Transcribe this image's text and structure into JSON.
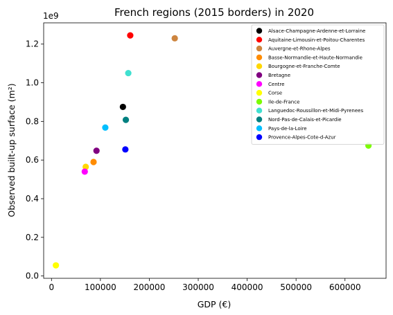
{
  "chart_data": {
    "type": "scatter",
    "title": "French regions (2015 borders) in 2020",
    "xlabel": "GDP (€)",
    "ylabel": "Observed built-up surface (m²)",
    "y_offset_label": "1e9",
    "xlim": [
      -16000,
      684000
    ],
    "ylim": [
      -0.012,
      1.31
    ],
    "xticks": [
      0,
      100000,
      200000,
      300000,
      400000,
      500000,
      600000
    ],
    "xtick_labels": [
      "0",
      "100000",
      "200000",
      "300000",
      "400000",
      "500000",
      "600000"
    ],
    "yticks": [
      0.0,
      0.2,
      0.4,
      0.6,
      0.8,
      1.0,
      1.2
    ],
    "ytick_labels": [
      "0.0",
      "0.2",
      "0.4",
      "0.6",
      "0.8",
      "1.0",
      "1.2"
    ],
    "y_scale_factor": 1000000000,
    "grid": false,
    "legend_position": "top-right",
    "series": [
      {
        "name": "Alsace-Champagne-Ardenne-et-Lorraine",
        "color": "#000000",
        "x": 146000,
        "y": 0.875
      },
      {
        "name": "Aquitaine-Limousin-et-Poitou-Charentes",
        "color": "#ff0000",
        "x": 161000,
        "y": 1.245
      },
      {
        "name": "Auvergne-et-Rhone-Alpes",
        "color": "#cd853f",
        "x": 252000,
        "y": 1.23
      },
      {
        "name": "Basse-Normandie-et-Haute-Normandie",
        "color": "#ff8c00",
        "x": 86000,
        "y": 0.59
      },
      {
        "name": "Bourgogne-et-Franche-Comte",
        "color": "#ffd700",
        "x": 70000,
        "y": 0.565
      },
      {
        "name": "Bretagne",
        "color": "#800080",
        "x": 92000,
        "y": 0.648
      },
      {
        "name": "Centre",
        "color": "#ff00ff",
        "x": 68000,
        "y": 0.54
      },
      {
        "name": "Corse",
        "color": "#ffff00",
        "x": 9000,
        "y": 0.055
      },
      {
        "name": "Ile-de-France",
        "color": "#7cfc00",
        "x": 648000,
        "y": 0.675
      },
      {
        "name": "Languedoc-Roussillon-et-Midi-Pyrenees",
        "color": "#40e0d0",
        "x": 157000,
        "y": 1.05
      },
      {
        "name": "Nord-Pas-de-Calais-et-Picardie",
        "color": "#008080",
        "x": 152000,
        "y": 0.808
      },
      {
        "name": "Pays-de-la-Loire",
        "color": "#00bfff",
        "x": 110000,
        "y": 0.768
      },
      {
        "name": "Provence-Alpes-Cote-d-Azur",
        "color": "#0000ff",
        "x": 151000,
        "y": 0.655
      }
    ]
  }
}
